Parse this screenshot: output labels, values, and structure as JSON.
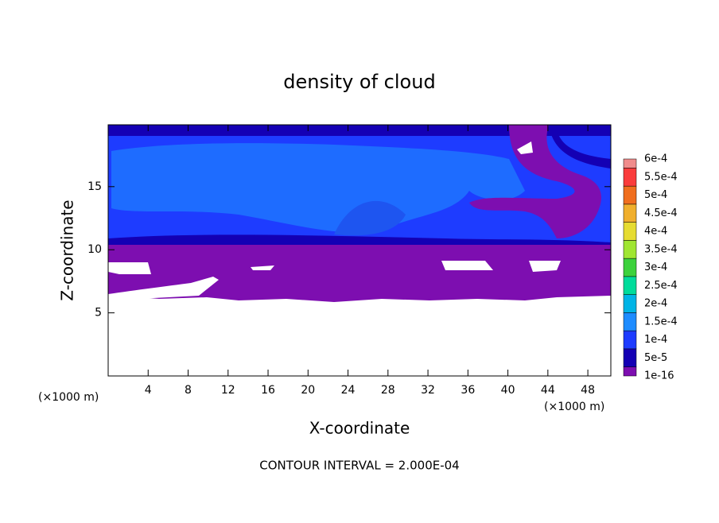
{
  "chart_data": {
    "type": "contour",
    "title": "density of cloud",
    "xlabel": "X-coordinate",
    "ylabel": "Z-coordinate",
    "x_unit": "(×1000 m)",
    "y_unit": "(×1000 m)",
    "footer": "CONTOUR INTERVAL = 2.000E-04",
    "xlim": [
      0,
      50.3
    ],
    "xticks": [
      4,
      8,
      12,
      16,
      20,
      24,
      28,
      32,
      36,
      40,
      44,
      48
    ],
    "ylim": [
      0,
      19.9
    ],
    "yticks": [
      5,
      10,
      15
    ],
    "colorbar": {
      "levels": [
        {
          "value": 1e-16,
          "label": "1e-16"
        },
        {
          "value": 5e-05,
          "label": "5e-5"
        },
        {
          "value": 0.0001,
          "label": "1e-4"
        },
        {
          "value": 0.00015,
          "label": "1.5e-4"
        },
        {
          "value": 0.0002,
          "label": "2e-4"
        },
        {
          "value": 0.00025,
          "label": "2.5e-4"
        },
        {
          "value": 0.0003,
          "label": "3e-4"
        },
        {
          "value": 0.00035,
          "label": "3.5e-4"
        },
        {
          "value": 0.0004,
          "label": "4e-4"
        },
        {
          "value": 0.00045,
          "label": "4.5e-4"
        },
        {
          "value": 0.0005,
          "label": "5e-4"
        },
        {
          "value": 0.00055,
          "label": "5.5e-4"
        },
        {
          "value": 0.0006,
          "label": "6e-4"
        }
      ],
      "colors": [
        "#7d0eb0",
        "#1400b4",
        "#1e3cff",
        "#1e8cff",
        "#00b4e6",
        "#00dc9b",
        "#3cd23c",
        "#a0e632",
        "#e6dc32",
        "#f0af2d",
        "#f06e1e",
        "#fa3c3c",
        "#f08c8c"
      ]
    }
  }
}
